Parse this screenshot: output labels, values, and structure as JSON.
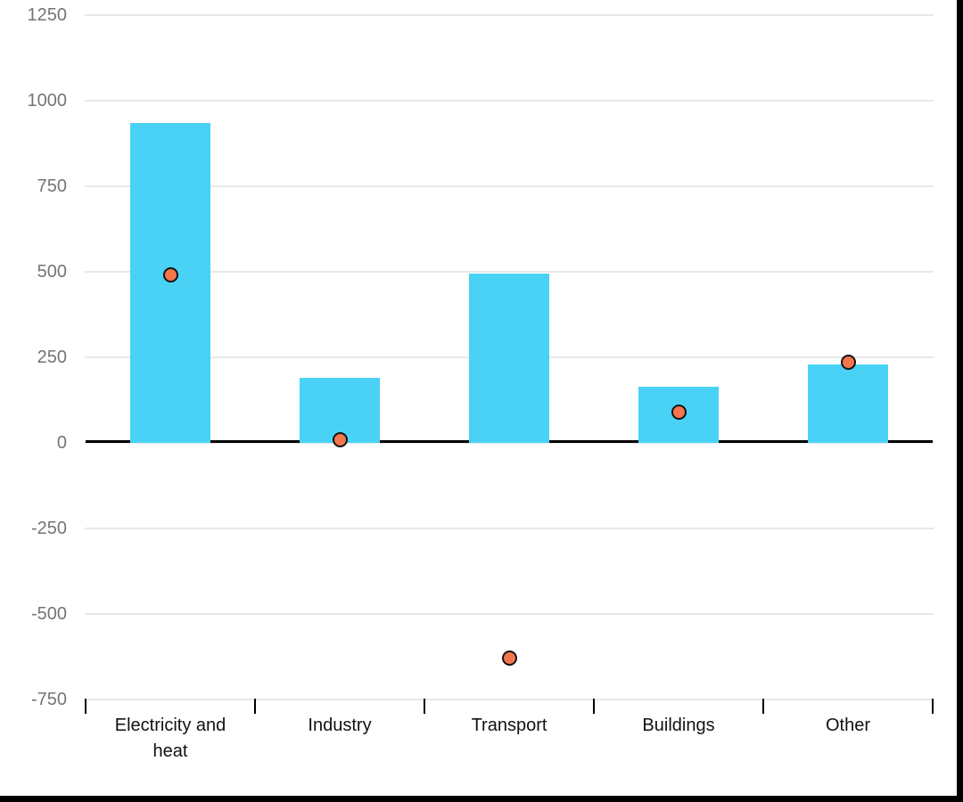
{
  "chart_data": {
    "type": "bar",
    "title": "",
    "xlabel": "",
    "ylabel": "",
    "categories": [
      "Electricity and heat",
      "Industry",
      "Transport",
      "Buildings",
      "Other"
    ],
    "series": [
      {
        "name": "bars",
        "type": "bar",
        "color": "#4ad2f6",
        "values": [
          935,
          190,
          495,
          165,
          230
        ]
      },
      {
        "name": "points",
        "type": "scatter",
        "fill": "#f4764d",
        "stroke": "#141414",
        "values": [
          490,
          10,
          -630,
          90,
          235
        ]
      }
    ],
    "ylim": [
      -750,
      1250
    ],
    "yticks": [
      1250,
      1000,
      750,
      500,
      250,
      0,
      -250,
      -500,
      -750
    ],
    "grid": true,
    "legend": "none"
  },
  "style": {
    "background": "#ffffff",
    "frame_border_color": "#000000",
    "grid_color": "#e8e8e8",
    "zero_line_color": "#000000",
    "tick_mark_color": "#000000",
    "y_tick_label_color": "#757575",
    "x_tick_label_color": "#111111"
  }
}
